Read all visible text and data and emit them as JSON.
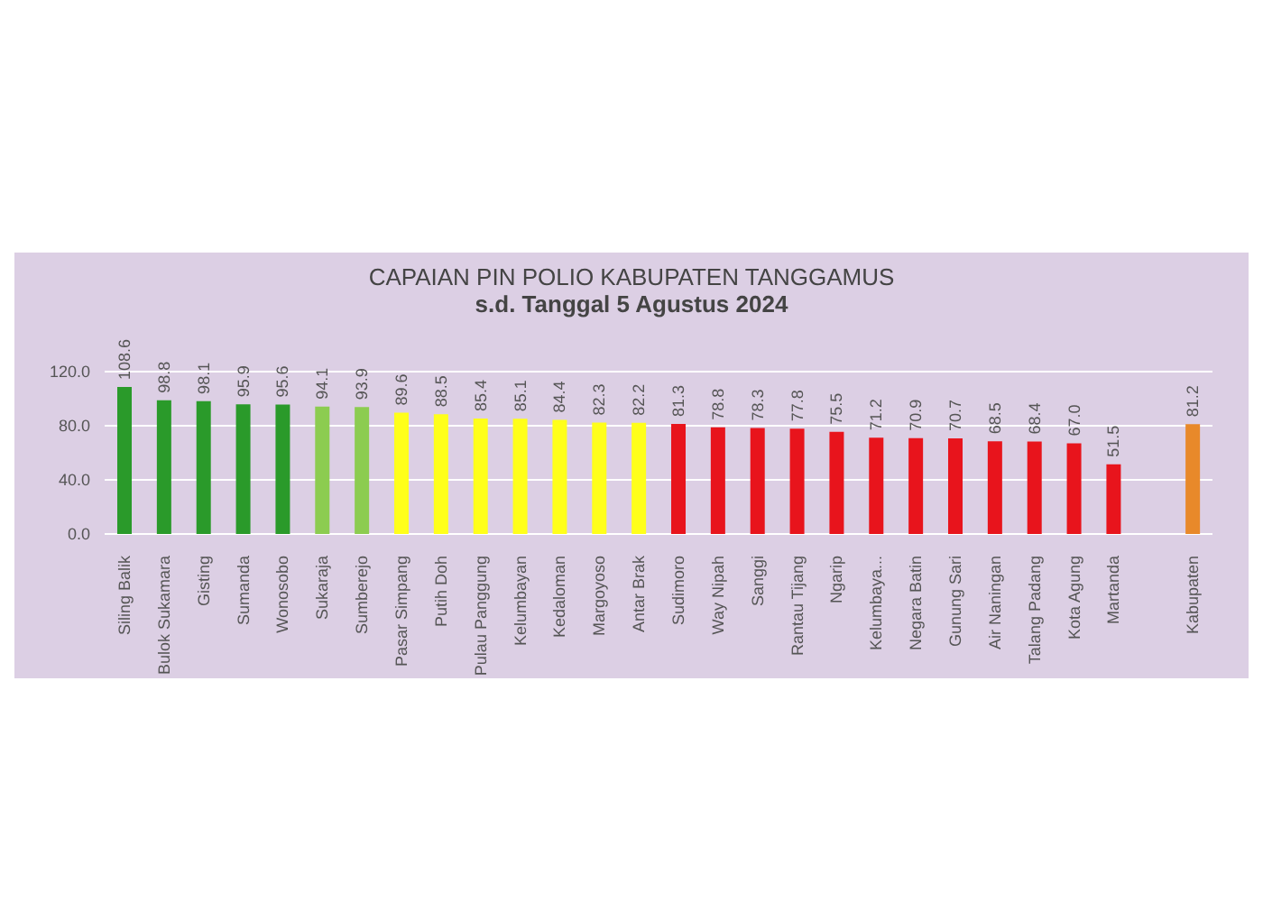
{
  "chart_data": {
    "type": "bar",
    "title": "CAPAIAN PIN POLIO KABUPATEN TANGGAMUS",
    "subtitle": "s.d. Tanggal 5 Agustus 2024",
    "categories": [
      "Siling Balik",
      "Bulok Sukamara",
      "Gisting",
      "Sumanda",
      "Wonosobo",
      "Sukaraja",
      "Sumberejo",
      "Pasar Simpang",
      "Putih Doh",
      "Pulau Panggung",
      "Kelumbayan",
      "Kedaloman",
      "Margoyoso",
      "Antar Brak",
      "Sudimoro",
      "Way Nipah",
      "Sanggi",
      "Rantau Tijang",
      "Ngarip",
      "Kelumbaya...",
      "Negara Batin",
      "Gunung Sari",
      "Air Naningan",
      "Talang Padang",
      "Kota Agung",
      "Martanda",
      null,
      "Kabupaten"
    ],
    "values": [
      108.6,
      98.8,
      98.1,
      95.9,
      95.6,
      94.1,
      93.9,
      89.6,
      88.5,
      85.4,
      85.1,
      84.4,
      82.3,
      82.2,
      81.3,
      78.8,
      78.3,
      77.8,
      75.5,
      71.2,
      70.9,
      70.7,
      68.5,
      68.4,
      67.0,
      51.5,
      null,
      81.2
    ],
    "colors": [
      "#2a9a2a",
      "#2a9a2a",
      "#2a9a2a",
      "#2a9a2a",
      "#2a9a2a",
      "#8ccc50",
      "#8ccc50",
      "#ffff1a",
      "#ffff1a",
      "#ffff1a",
      "#ffff1a",
      "#ffff1a",
      "#ffff1a",
      "#ffff1a",
      "#e8141c",
      "#e8141c",
      "#e8141c",
      "#e8141c",
      "#e8141c",
      "#e8141c",
      "#e8141c",
      "#e8141c",
      "#e8141c",
      "#e8141c",
      "#e8141c",
      "#e8141c",
      "#e8141c",
      "#e8892a"
    ],
    "ylim": [
      0,
      120
    ],
    "yticks": [
      {
        "value": 0,
        "label": "0.0"
      },
      {
        "value": 40,
        "label": "40.0"
      },
      {
        "value": 80,
        "label": "80.0"
      },
      {
        "value": 120,
        "label": "120.0"
      }
    ],
    "value_labels": [
      "108.6",
      "98.8",
      "98.1",
      "95.9",
      "95.6",
      "94.1",
      "93.9",
      "89.6",
      "88.5",
      "85.4",
      "85.1",
      "84.4",
      "82.3",
      "82.2",
      "81.3",
      "78.8",
      "78.3",
      "77.8",
      "75.5",
      "71.2",
      "70.9",
      "70.7",
      "68.5",
      "68.4",
      "67.0",
      "51.5",
      null,
      "81.2"
    ],
    "grid": "y"
  }
}
